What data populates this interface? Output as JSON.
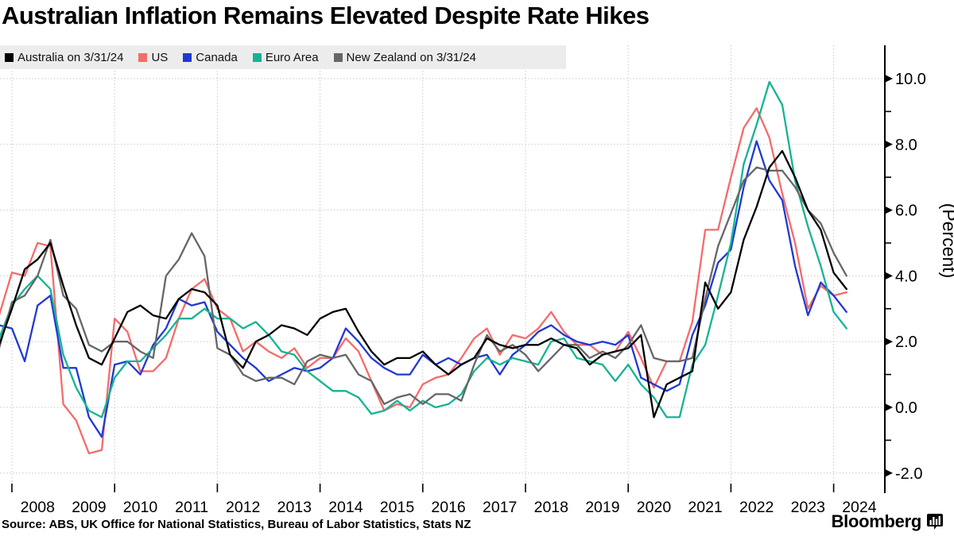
{
  "title": "Australian Inflation Remains Elevated Despite Rate Hikes",
  "source_line": "Source: ABS, UK Office for National Statistics, Bureau of Labor Statistics, Stats NZ",
  "branding": {
    "logo_text": "Bloomberg"
  },
  "legend": {
    "items": [
      {
        "label": "Australia on 3/31/24",
        "color": "#000000"
      },
      {
        "label": "US",
        "color": "#f56b6b"
      },
      {
        "label": "Canada",
        "color": "#2139d1"
      },
      {
        "label": "Euro Area",
        "color": "#14b394"
      },
      {
        "label": "New Zealand on 3/31/24",
        "color": "#666666"
      }
    ]
  },
  "chart_data": {
    "type": "line",
    "title": "Australian Inflation Remains Elevated Despite Rate Hikes",
    "xlabel": "",
    "ylabel": "(Percent)",
    "ylim": [
      -2.5,
      11.0
    ],
    "xlim": [
      2007.75,
      2025.0
    ],
    "grid": true,
    "legend_position": "top-left",
    "yticks": [
      10,
      8,
      6,
      4,
      2,
      0,
      -2
    ],
    "y_tick_labels": [
      "10.0",
      "8.0",
      "6.0",
      "4.0",
      "2.0",
      "0.0",
      "-2.0"
    ],
    "y_minor_ticks": [
      9,
      7,
      5,
      3,
      1,
      -1
    ],
    "x_tick_labels": [
      "2008",
      "2009",
      "2010",
      "2011",
      "2012",
      "2013",
      "2014",
      "2015",
      "2016",
      "2017",
      "2018",
      "2019",
      "2020",
      "2021",
      "2022",
      "2023",
      "2024"
    ],
    "x_gridline_years": [
      2008,
      2010,
      2012,
      2014,
      2016,
      2018,
      2020,
      2022,
      2024
    ],
    "x_start": 2007.75,
    "x_step": 0.25,
    "series": [
      {
        "name": "US",
        "color": "#f56b6b",
        "values": [
          2.8,
          4.1,
          4.0,
          5.0,
          4.9,
          0.1,
          -0.4,
          -1.4,
          -1.3,
          2.7,
          2.3,
          1.1,
          1.1,
          1.5,
          2.7,
          3.6,
          3.9,
          3.0,
          2.7,
          1.7,
          2.0,
          1.7,
          1.5,
          1.8,
          1.2,
          1.5,
          1.5,
          2.1,
          1.7,
          0.8,
          -0.1,
          0.1,
          0.0,
          0.7,
          0.9,
          1.0,
          1.5,
          2.1,
          2.4,
          1.6,
          2.2,
          2.1,
          2.4,
          2.9,
          2.3,
          1.9,
          1.9,
          1.6,
          1.7,
          2.3,
          1.5,
          0.6,
          1.4,
          1.4,
          2.6,
          5.4,
          5.4,
          7.0,
          8.5,
          9.1,
          8.2,
          6.5,
          5.0,
          3.0,
          3.7,
          3.4,
          3.5
        ]
      },
      {
        "name": "Canada",
        "color": "#2139d1",
        "values": [
          2.5,
          2.4,
          1.4,
          3.1,
          3.4,
          1.2,
          1.2,
          -0.3,
          -0.9,
          1.3,
          1.4,
          1.0,
          1.9,
          2.4,
          3.3,
          3.1,
          3.2,
          2.3,
          1.9,
          1.5,
          1.2,
          0.8,
          1.0,
          1.2,
          1.1,
          1.2,
          1.5,
          2.4,
          2.0,
          1.5,
          1.2,
          1.0,
          1.0,
          1.6,
          1.3,
          1.5,
          1.3,
          1.5,
          1.6,
          1.0,
          1.6,
          1.9,
          2.3,
          2.5,
          2.2,
          2.0,
          1.9,
          2.0,
          1.9,
          2.2,
          0.9,
          0.7,
          0.5,
          0.7,
          2.2,
          3.1,
          4.4,
          4.8,
          6.7,
          8.1,
          6.9,
          6.3,
          4.3,
          2.8,
          3.8,
          3.4,
          2.9
        ]
      },
      {
        "name": "Euro Area",
        "color": "#14b394",
        "values": [
          2.1,
          3.1,
          3.6,
          4.0,
          3.6,
          1.6,
          0.6,
          -0.1,
          -0.3,
          0.9,
          1.4,
          1.4,
          1.8,
          2.2,
          2.7,
          2.7,
          3.0,
          2.7,
          2.7,
          2.4,
          2.6,
          2.2,
          1.7,
          1.6,
          1.1,
          0.8,
          0.5,
          0.5,
          0.3,
          -0.2,
          -0.1,
          0.2,
          -0.1,
          0.2,
          0.0,
          0.1,
          0.4,
          1.1,
          1.5,
          1.3,
          1.5,
          1.4,
          1.3,
          2.0,
          2.1,
          1.5,
          1.4,
          1.3,
          0.8,
          1.3,
          0.7,
          0.3,
          -0.3,
          -0.3,
          1.3,
          1.9,
          3.4,
          5.0,
          7.4,
          8.6,
          9.9,
          9.2,
          6.9,
          5.5,
          4.3,
          2.9,
          2.4
        ]
      },
      {
        "name": "New Zealand on 3/31/24",
        "color": "#666666",
        "values": [
          1.8,
          3.2,
          3.4,
          4.0,
          5.1,
          3.4,
          3.0,
          1.9,
          1.7,
          2.0,
          2.0,
          1.7,
          1.5,
          4.0,
          4.5,
          5.3,
          4.6,
          1.8,
          1.6,
          1.0,
          0.8,
          0.9,
          0.9,
          0.7,
          1.4,
          1.6,
          1.5,
          1.6,
          1.0,
          0.8,
          0.1,
          0.3,
          0.4,
          0.1,
          0.4,
          0.4,
          0.2,
          1.3,
          2.2,
          1.7,
          1.9,
          1.6,
          1.1,
          1.5,
          1.9,
          1.9,
          1.5,
          1.7,
          1.5,
          1.9,
          2.5,
          1.5,
          1.4,
          1.4,
          1.5,
          3.3,
          4.9,
          5.9,
          6.9,
          7.3,
          7.2,
          7.2,
          6.7,
          6.0,
          5.6,
          4.7,
          4.0
        ]
      },
      {
        "name": "Australia on 3/31/24",
        "color": "#000000",
        "values": [
          1.9,
          3.0,
          4.2,
          4.5,
          5.0,
          3.7,
          2.5,
          1.5,
          1.3,
          2.1,
          2.9,
          3.1,
          2.8,
          2.7,
          3.3,
          3.6,
          3.5,
          3.1,
          1.6,
          1.2,
          2.0,
          2.2,
          2.5,
          2.4,
          2.2,
          2.7,
          2.9,
          3.0,
          2.3,
          1.7,
          1.3,
          1.5,
          1.5,
          1.7,
          1.3,
          1.0,
          1.3,
          1.5,
          2.1,
          1.9,
          1.8,
          1.9,
          1.9,
          2.1,
          1.9,
          1.8,
          1.3,
          1.6,
          1.7,
          1.8,
          2.2,
          -0.3,
          0.7,
          0.9,
          1.1,
          3.8,
          3.0,
          3.5,
          5.1,
          6.1,
          7.3,
          7.8,
          7.0,
          6.0,
          5.4,
          4.1,
          3.6
        ]
      }
    ]
  },
  "style": {
    "grid_color": "#c9c9c9",
    "axis_color": "#000000",
    "legend_bg": "#ececec"
  }
}
